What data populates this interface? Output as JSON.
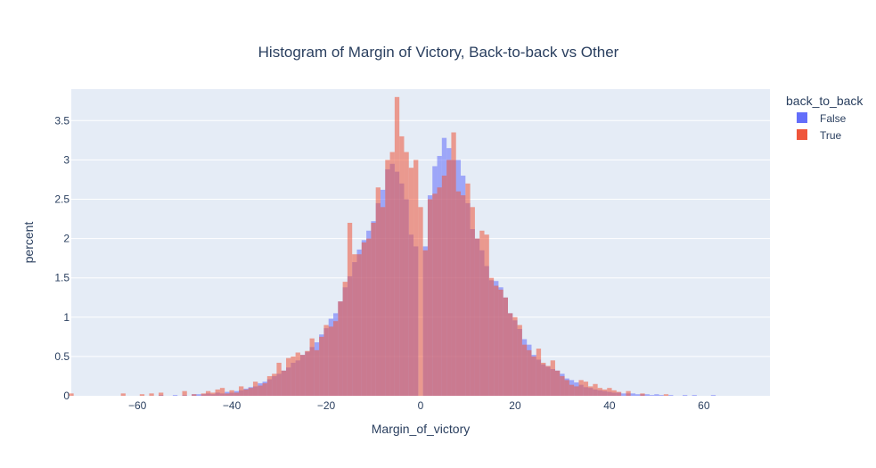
{
  "chart_data": {
    "type": "bar",
    "title": "Histogram of Margin of Victory, Back-to-back vs Other",
    "xlabel": "Margin_of_victory",
    "ylabel": "percent",
    "xlim": [
      -74,
      74
    ],
    "ylim": [
      0,
      3.9
    ],
    "x_ticks": [
      -60,
      -40,
      -20,
      0,
      20,
      40,
      60
    ],
    "y_ticks": [
      0,
      0.5,
      1,
      1.5,
      2,
      2.5,
      3,
      3.5
    ],
    "y_tick_labels": [
      "0",
      "0.5",
      "1",
      "1.5",
      "2",
      "2.5",
      "3",
      "3.5"
    ],
    "x_tick_labels": [
      "−60",
      "−40",
      "−20",
      "0",
      "20",
      "40",
      "60"
    ],
    "grid": true,
    "legend_position": "top-right",
    "legend_title": "back_to_back",
    "colors": {
      "false": "#636efa",
      "true": "#ef553b",
      "plot_bg": "#e5ecf6",
      "grid": "#ffffff",
      "text": "#2a3f5f"
    },
    "bin_width": 1,
    "series": [
      {
        "name": "False",
        "color": "#636efa",
        "bins": [
          {
            "x": -55,
            "y": 0.01
          },
          {
            "x": -52,
            "y": 0.01
          },
          {
            "x": -50,
            "y": 0.01
          },
          {
            "x": -48,
            "y": 0.02
          },
          {
            "x": -47,
            "y": 0.02
          },
          {
            "x": -46,
            "y": 0.02
          },
          {
            "x": -45,
            "y": 0.03
          },
          {
            "x": -44,
            "y": 0.02
          },
          {
            "x": -43,
            "y": 0.04
          },
          {
            "x": -42,
            "y": 0.03
          },
          {
            "x": -41,
            "y": 0.05
          },
          {
            "x": -40,
            "y": 0.04
          },
          {
            "x": -39,
            "y": 0.06
          },
          {
            "x": -38,
            "y": 0.07
          },
          {
            "x": -37,
            "y": 0.09
          },
          {
            "x": -36,
            "y": 0.11
          },
          {
            "x": -35,
            "y": 0.12
          },
          {
            "x": -34,
            "y": 0.16
          },
          {
            "x": -33,
            "y": 0.18
          },
          {
            "x": -32,
            "y": 0.21
          },
          {
            "x": -31,
            "y": 0.25
          },
          {
            "x": -30,
            "y": 0.28
          },
          {
            "x": -29,
            "y": 0.32
          },
          {
            "x": -28,
            "y": 0.36
          },
          {
            "x": -27,
            "y": 0.42
          },
          {
            "x": -26,
            "y": 0.45
          },
          {
            "x": -25,
            "y": 0.52
          },
          {
            "x": -24,
            "y": 0.56
          },
          {
            "x": -23,
            "y": 0.62
          },
          {
            "x": -22,
            "y": 0.68
          },
          {
            "x": -21,
            "y": 0.78
          },
          {
            "x": -20,
            "y": 0.86
          },
          {
            "x": -19,
            "y": 0.98
          },
          {
            "x": -18,
            "y": 1.05
          },
          {
            "x": -17,
            "y": 1.2
          },
          {
            "x": -16,
            "y": 1.38
          },
          {
            "x": -15,
            "y": 1.52
          },
          {
            "x": -14,
            "y": 1.7
          },
          {
            "x": -13,
            "y": 1.86
          },
          {
            "x": -12,
            "y": 1.98
          },
          {
            "x": -11,
            "y": 2.1
          },
          {
            "x": -10,
            "y": 2.22
          },
          {
            "x": -9,
            "y": 2.45
          },
          {
            "x": -8,
            "y": 2.62
          },
          {
            "x": -7,
            "y": 2.88
          },
          {
            "x": -6,
            "y": 2.95
          },
          {
            "x": -5,
            "y": 2.85
          },
          {
            "x": -4,
            "y": 2.7
          },
          {
            "x": -3,
            "y": 2.5
          },
          {
            "x": -2,
            "y": 2.05
          },
          {
            "x": -1,
            "y": 1.9
          },
          {
            "x": 1,
            "y": 1.9
          },
          {
            "x": 2,
            "y": 2.55
          },
          {
            "x": 3,
            "y": 2.92
          },
          {
            "x": 4,
            "y": 3.05
          },
          {
            "x": 5,
            "y": 3.28
          },
          {
            "x": 6,
            "y": 3.15
          },
          {
            "x": 7,
            "y": 3.0
          },
          {
            "x": 8,
            "y": 3.0
          },
          {
            "x": 9,
            "y": 2.8
          },
          {
            "x": 10,
            "y": 2.45
          },
          {
            "x": 11,
            "y": 2.12
          },
          {
            "x": 12,
            "y": 2.0
          },
          {
            "x": 13,
            "y": 1.85
          },
          {
            "x": 14,
            "y": 1.65
          },
          {
            "x": 15,
            "y": 1.47
          },
          {
            "x": 16,
            "y": 1.46
          },
          {
            "x": 17,
            "y": 1.38
          },
          {
            "x": 18,
            "y": 1.25
          },
          {
            "x": 19,
            "y": 1.05
          },
          {
            "x": 20,
            "y": 0.96
          },
          {
            "x": 21,
            "y": 0.85
          },
          {
            "x": 22,
            "y": 0.72
          },
          {
            "x": 23,
            "y": 0.65
          },
          {
            "x": 24,
            "y": 0.52
          },
          {
            "x": 25,
            "y": 0.46
          },
          {
            "x": 26,
            "y": 0.4
          },
          {
            "x": 27,
            "y": 0.37
          },
          {
            "x": 28,
            "y": 0.34
          },
          {
            "x": 29,
            "y": 0.32
          },
          {
            "x": 30,
            "y": 0.28
          },
          {
            "x": 31,
            "y": 0.22
          },
          {
            "x": 32,
            "y": 0.2
          },
          {
            "x": 33,
            "y": 0.17
          },
          {
            "x": 34,
            "y": 0.14
          },
          {
            "x": 35,
            "y": 0.11
          },
          {
            "x": 36,
            "y": 0.1
          },
          {
            "x": 37,
            "y": 0.08
          },
          {
            "x": 38,
            "y": 0.07
          },
          {
            "x": 39,
            "y": 0.06
          },
          {
            "x": 40,
            "y": 0.05
          },
          {
            "x": 41,
            "y": 0.04
          },
          {
            "x": 42,
            "y": 0.04
          },
          {
            "x": 43,
            "y": 0.03
          },
          {
            "x": 44,
            "y": 0.03
          },
          {
            "x": 45,
            "y": 0.03
          },
          {
            "x": 46,
            "y": 0.02
          },
          {
            "x": 47,
            "y": 0.02
          },
          {
            "x": 48,
            "y": 0.02
          },
          {
            "x": 49,
            "y": 0.01
          },
          {
            "x": 50,
            "y": 0.02
          },
          {
            "x": 51,
            "y": 0.01
          },
          {
            "x": 53,
            "y": 0.01
          },
          {
            "x": 56,
            "y": 0.01
          },
          {
            "x": 58,
            "y": 0.01
          },
          {
            "x": 62,
            "y": 0.01
          }
        ]
      },
      {
        "name": "True",
        "color": "#ef553b",
        "bins": [
          {
            "x": -74,
            "y": 0.03
          },
          {
            "x": -63,
            "y": 0.03
          },
          {
            "x": -59,
            "y": 0.02
          },
          {
            "x": -57,
            "y": 0.03
          },
          {
            "x": -55,
            "y": 0.04
          },
          {
            "x": -50,
            "y": 0.06
          },
          {
            "x": -48,
            "y": 0.02
          },
          {
            "x": -46,
            "y": 0.03
          },
          {
            "x": -45,
            "y": 0.06
          },
          {
            "x": -44,
            "y": 0.04
          },
          {
            "x": -43,
            "y": 0.08
          },
          {
            "x": -42,
            "y": 0.1
          },
          {
            "x": -41,
            "y": 0.03
          },
          {
            "x": -40,
            "y": 0.07
          },
          {
            "x": -39,
            "y": 0.04
          },
          {
            "x": -38,
            "y": 0.12
          },
          {
            "x": -37,
            "y": 0.08
          },
          {
            "x": -36,
            "y": 0.1
          },
          {
            "x": -35,
            "y": 0.18
          },
          {
            "x": -34,
            "y": 0.13
          },
          {
            "x": -33,
            "y": 0.16
          },
          {
            "x": -32,
            "y": 0.25
          },
          {
            "x": -31,
            "y": 0.28
          },
          {
            "x": -30,
            "y": 0.42
          },
          {
            "x": -29,
            "y": 0.32
          },
          {
            "x": -28,
            "y": 0.48
          },
          {
            "x": -27,
            "y": 0.5
          },
          {
            "x": -26,
            "y": 0.55
          },
          {
            "x": -25,
            "y": 0.52
          },
          {
            "x": -24,
            "y": 0.57
          },
          {
            "x": -23,
            "y": 0.73
          },
          {
            "x": -22,
            "y": 0.58
          },
          {
            "x": -21,
            "y": 0.75
          },
          {
            "x": -20,
            "y": 0.9
          },
          {
            "x": -19,
            "y": 0.88
          },
          {
            "x": -18,
            "y": 0.95
          },
          {
            "x": -17,
            "y": 1.2
          },
          {
            "x": -16,
            "y": 1.45
          },
          {
            "x": -15,
            "y": 2.2
          },
          {
            "x": -14,
            "y": 1.8
          },
          {
            "x": -13,
            "y": 1.8
          },
          {
            "x": -12,
            "y": 1.95
          },
          {
            "x": -11,
            "y": 2.0
          },
          {
            "x": -10,
            "y": 2.2
          },
          {
            "x": -9,
            "y": 2.65
          },
          {
            "x": -8,
            "y": 2.4
          },
          {
            "x": -7,
            "y": 3.0
          },
          {
            "x": -6,
            "y": 3.1
          },
          {
            "x": -5,
            "y": 3.8
          },
          {
            "x": -4,
            "y": 3.3
          },
          {
            "x": -3,
            "y": 3.1
          },
          {
            "x": -2,
            "y": 2.9
          },
          {
            "x": -1,
            "y": 3.0
          },
          {
            "x": 0,
            "y": 2.4
          },
          {
            "x": 1,
            "y": 1.85
          },
          {
            "x": 2,
            "y": 2.5
          },
          {
            "x": 3,
            "y": 2.57
          },
          {
            "x": 4,
            "y": 2.65
          },
          {
            "x": 5,
            "y": 2.8
          },
          {
            "x": 6,
            "y": 3.0
          },
          {
            "x": 7,
            "y": 3.35
          },
          {
            "x": 8,
            "y": 2.6
          },
          {
            "x": 9,
            "y": 2.55
          },
          {
            "x": 10,
            "y": 2.7
          },
          {
            "x": 11,
            "y": 2.4
          },
          {
            "x": 12,
            "y": 2.0
          },
          {
            "x": 13,
            "y": 2.1
          },
          {
            "x": 14,
            "y": 2.05
          },
          {
            "x": 15,
            "y": 1.5
          },
          {
            "x": 16,
            "y": 1.4
          },
          {
            "x": 17,
            "y": 1.35
          },
          {
            "x": 18,
            "y": 1.25
          },
          {
            "x": 19,
            "y": 1.05
          },
          {
            "x": 20,
            "y": 1.0
          },
          {
            "x": 21,
            "y": 0.9
          },
          {
            "x": 22,
            "y": 0.65
          },
          {
            "x": 23,
            "y": 0.58
          },
          {
            "x": 24,
            "y": 0.5
          },
          {
            "x": 25,
            "y": 0.6
          },
          {
            "x": 26,
            "y": 0.42
          },
          {
            "x": 27,
            "y": 0.38
          },
          {
            "x": 28,
            "y": 0.45
          },
          {
            "x": 29,
            "y": 0.32
          },
          {
            "x": 30,
            "y": 0.25
          },
          {
            "x": 31,
            "y": 0.2
          },
          {
            "x": 32,
            "y": 0.14
          },
          {
            "x": 33,
            "y": 0.12
          },
          {
            "x": 34,
            "y": 0.2
          },
          {
            "x": 35,
            "y": 0.18
          },
          {
            "x": 36,
            "y": 0.12
          },
          {
            "x": 37,
            "y": 0.15
          },
          {
            "x": 38,
            "y": 0.1
          },
          {
            "x": 39,
            "y": 0.08
          },
          {
            "x": 40,
            "y": 0.1
          },
          {
            "x": 41,
            "y": 0.07
          },
          {
            "x": 42,
            "y": 0.05
          },
          {
            "x": 44,
            "y": 0.06
          },
          {
            "x": 47,
            "y": 0.03
          },
          {
            "x": 52,
            "y": 0.02
          }
        ]
      }
    ]
  }
}
